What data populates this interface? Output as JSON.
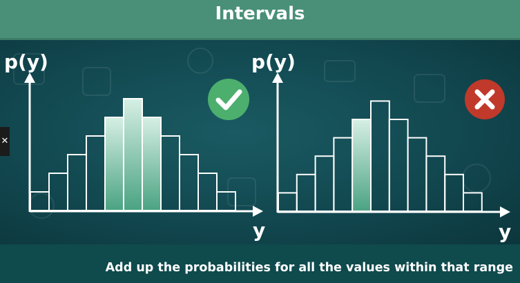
{
  "header": {
    "title": "Intervals"
  },
  "caption": "Add up the probabilities for all the values within that range",
  "colors": {
    "highlight": "#4aa382",
    "correct": "#4caf6e",
    "wrong": "#c0392b",
    "bar_outline": "#ffffff"
  },
  "side_button": {
    "icon": "close-icon",
    "glyph": "✕"
  },
  "charts": [
    {
      "id": "left",
      "ylabel": "p(y)",
      "xlabel": "y",
      "badge": "check-icon",
      "values": [
        1,
        2,
        3,
        4,
        5,
        6,
        5,
        4,
        3,
        2,
        1
      ],
      "highlighted": [
        4,
        5,
        6
      ]
    },
    {
      "id": "right",
      "ylabel": "p(y)",
      "xlabel": "y",
      "badge": "cross-icon",
      "values": [
        1,
        2,
        3,
        4,
        5,
        6,
        5,
        4,
        3,
        2,
        1
      ],
      "highlighted": [
        4
      ]
    }
  ]
}
